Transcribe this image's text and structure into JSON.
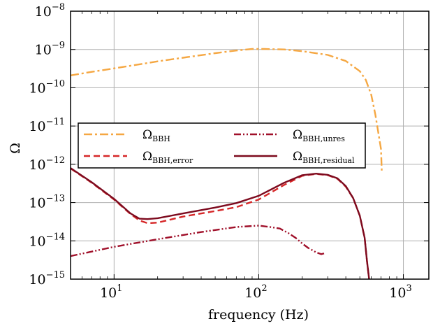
{
  "chart_data": {
    "type": "line",
    "xlabel": "frequency (Hz)",
    "ylabel": "Ω",
    "xscale": "log",
    "yscale": "log",
    "xlim": [
      5,
      1500
    ],
    "ylim": [
      1e-15,
      1e-08
    ],
    "grid": true,
    "legend_placement": "center-left",
    "x_ticks": [
      {
        "base": "10",
        "exp": "1",
        "value": 10
      },
      {
        "base": "10",
        "exp": "2",
        "value": 100
      },
      {
        "base": "10",
        "exp": "3",
        "value": 1000
      }
    ],
    "y_ticks": [
      {
        "base": "10",
        "exp": "−15",
        "value": 1e-15
      },
      {
        "base": "10",
        "exp": "−14",
        "value": 1e-14
      },
      {
        "base": "10",
        "exp": "−13",
        "value": 1e-13
      },
      {
        "base": "10",
        "exp": "−12",
        "value": 1e-12
      },
      {
        "base": "10",
        "exp": "−11",
        "value": 1e-11
      },
      {
        "base": "10",
        "exp": "−10",
        "value": 1e-10
      },
      {
        "base": "10",
        "exp": "−9",
        "value": 1e-09
      },
      {
        "base": "10",
        "exp": "−8",
        "value": 1e-08
      }
    ],
    "series": [
      {
        "name": "Ω",
        "sub": "BBH",
        "color": "#f5a742",
        "style": "dashdot",
        "x": [
          5,
          7,
          10,
          15,
          20,
          30,
          50,
          70,
          90,
          110,
          150,
          200,
          300,
          400,
          500,
          550,
          600,
          640,
          670,
          700,
          710
        ],
        "y": [
          2.1e-10,
          2.6e-10,
          3.2e-10,
          4.1e-10,
          4.9e-10,
          6.1e-10,
          8e-10,
          9.4e-10,
          1.03e-09,
          1.03e-09,
          1e-09,
          9e-10,
          7.2e-10,
          5e-10,
          2.7e-10,
          1.6e-10,
          6.5e-11,
          2e-11,
          7e-12,
          2.5e-12,
          6e-13
        ]
      },
      {
        "name": "Ω",
        "sub": "BBH,error",
        "color": "#d62728",
        "style": "dashed",
        "x": [
          5,
          7,
          10,
          13,
          15,
          17,
          20,
          30,
          50,
          70,
          100,
          150,
          200,
          250,
          300,
          350,
          400,
          450,
          500,
          540,
          560,
          580
        ],
        "y": [
          7.8e-13,
          3.3e-13,
          1.2e-13,
          5e-14,
          3.4e-14,
          2.9e-14,
          3e-14,
          4.3e-14,
          6e-14,
          7.6e-14,
          1.2e-13,
          2.9e-13,
          5e-13,
          5.6e-13,
          5.2e-13,
          4.2e-13,
          2.6e-13,
          1.3e-13,
          4.5e-14,
          1.2e-14,
          3e-15,
          1e-15
        ]
      },
      {
        "name": "Ω",
        "sub": "BBH,unres",
        "color": "#a0102a",
        "style": "dashdotdot",
        "x": [
          5,
          10,
          20,
          40,
          70,
          100,
          120,
          140,
          160,
          180,
          200,
          220,
          250,
          270,
          290
        ],
        "y": [
          4e-15,
          7e-15,
          1.1e-14,
          1.7e-14,
          2.3e-14,
          2.5e-14,
          2.3e-14,
          2.1e-14,
          1.6e-14,
          1.2e-14,
          8.5e-15,
          6.5e-15,
          5e-15,
          4.5e-15,
          4.8e-15
        ]
      },
      {
        "name": "Ω",
        "sub": "BBH,residual",
        "color": "#7d0a1e",
        "style": "solid",
        "x": [
          5,
          7,
          10,
          13,
          15,
          17,
          20,
          30,
          50,
          70,
          100,
          150,
          200,
          250,
          300,
          350,
          400,
          450,
          500,
          540,
          560,
          580
        ],
        "y": [
          8e-13,
          3.4e-13,
          1.25e-13,
          5.2e-14,
          3.8e-14,
          3.7e-14,
          3.9e-14,
          5.2e-14,
          7.4e-14,
          9.7e-14,
          1.5e-13,
          3.3e-13,
          5.2e-13,
          5.7e-13,
          5.3e-13,
          4.3e-13,
          2.7e-13,
          1.3e-13,
          4.5e-14,
          1.2e-14,
          3e-15,
          1e-15
        ]
      }
    ]
  }
}
